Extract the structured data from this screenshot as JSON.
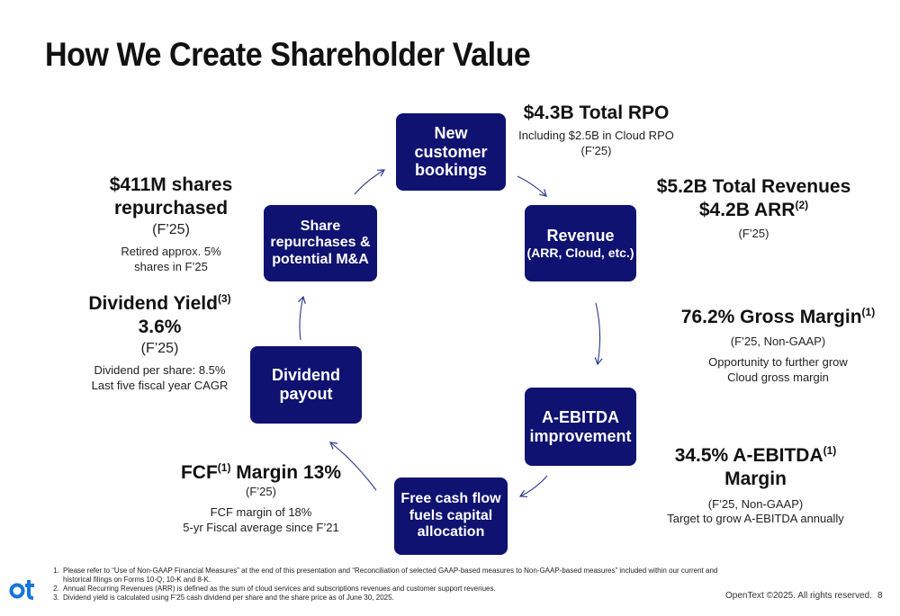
{
  "title": "How We Create Shareholder Value",
  "nodes": {
    "bookings": {
      "main": "New customer bookings"
    },
    "revenue": {
      "main": "Revenue",
      "sub": "(ARR, Cloud, etc.)"
    },
    "ebitda": {
      "main": "A-EBITDA improvement"
    },
    "fcf": {
      "main": "Free cash flow fuels capital allocation"
    },
    "dividend": {
      "main": "Dividend payout"
    },
    "share": {
      "main": "Share repurchases & potential M&A"
    }
  },
  "annotations": {
    "rpo": {
      "headline": "$4.3B Total RPO",
      "line1": "Including $2.5B in Cloud RPO",
      "line2": "(F’25)"
    },
    "revenue": {
      "line1": "$5.2B Total Revenues",
      "line2a": "$4.2B ARR",
      "line2sup": "(2)",
      "period": "(F’25)"
    },
    "gross_margin": {
      "headline": "76.2% Gross Margin",
      "sup": "(1)",
      "period": "(F’25, Non-GAAP)",
      "line1": "Opportunity to further grow",
      "line2": "Cloud gross margin"
    },
    "ebitda": {
      "pre": "34.5% A-EBITDA",
      "sup": "(1)",
      "post": " Margin",
      "period": "(F’25, Non-GAAP)",
      "line1": "Target to grow A-EBITDA annually"
    },
    "fcf": {
      "pre": "FCF",
      "sup": "(1)",
      "post": " Margin 13%",
      "period": "(F’25)",
      "line1": "FCF margin of 18%",
      "line2": "5-yr Fiscal average since F’21"
    },
    "dividend": {
      "pre": "Dividend Yield",
      "sup": "(3)",
      "value": "3.6%",
      "period": "(F’25)",
      "line1": "Dividend per share: 8.5%",
      "line2": "Last five fiscal year CAGR"
    },
    "share": {
      "headline": "$411M shares repurchased",
      "period": "(F’25)",
      "line1": "Retired approx. 5%",
      "line2": "shares in F’25"
    }
  },
  "footnotes": [
    "Please refer to “Use of Non-GAAP Financial Measures” at the end of this presentation and “Reconciliation of selected GAAP-based measures to Non-GAAP-based measures” included within our current and historical filings on Forms 10-Q, 10-K and 8-K.",
    "Annual Recurring Revenues (ARR) is defined as the sum of cloud services and subscriptions revenues and customer support revenues.",
    "Dividend yield is calculated using F’25 cash dividend per share and the share price as of June 30, 2025."
  ],
  "logo_icon": "opentext-logo-icon",
  "copyright": "OpenText ©2025. All rights reserved.",
  "page_number": "8",
  "colors": {
    "node_fill": "#0f1270",
    "arrow": "#2a3a8c",
    "logo": "#1476dc"
  }
}
